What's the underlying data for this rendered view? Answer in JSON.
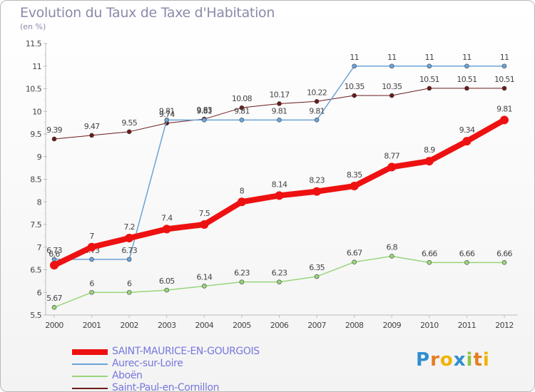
{
  "title": "Evolution du Taux de Taxe d'Habitation",
  "unit_label": "(en %)",
  "logo": {
    "letters": [
      "P",
      "r",
      "o",
      "x",
      "i",
      "t",
      "i"
    ],
    "colors": [
      "#2f8fd0",
      "#e57e22",
      "#f0b400",
      "#2f8fd0",
      "#8fc63d",
      "#e57e22",
      "#f0b400"
    ]
  },
  "chart_data": {
    "type": "line",
    "x": [
      2000,
      2001,
      2002,
      2003,
      2004,
      2005,
      2006,
      2007,
      2008,
      2009,
      2010,
      2011,
      2012
    ],
    "ylim": [
      5.5,
      11.5
    ],
    "yticks": [
      "5.5",
      "6",
      "6.5",
      "7",
      "7.5",
      "8",
      "8.5",
      "9",
      "9.5",
      "10",
      "10.5",
      "11",
      "11.5"
    ],
    "grid": false,
    "legend_position": "bottom-left",
    "series": [
      {
        "name": "Saint-Paul-en-Cornillon",
        "color": "#6b1a1a",
        "width": 1,
        "marker": 3,
        "values": [
          9.39,
          9.47,
          9.55,
          9.74,
          9.83,
          10.08,
          10.17,
          10.22,
          10.35,
          10.35,
          10.51,
          10.51,
          10.51
        ],
        "labels": [
          "9.39",
          "9.47",
          "9.55",
          "9.74",
          "9.83",
          "10.08",
          "10.17",
          "10.22",
          "10.35",
          "10.35",
          "10.51",
          "10.51",
          "10.51"
        ]
      },
      {
        "name": "Aboën",
        "color": "#99d57a",
        "width": 1.5,
        "marker": 3,
        "values": [
          5.67,
          6,
          6,
          6.05,
          6.14,
          6.23,
          6.23,
          6.35,
          6.67,
          6.8,
          6.66,
          6.66,
          6.66
        ],
        "labels": [
          "5.67",
          "6",
          "6",
          "6.05",
          "6.14",
          "6.23",
          "6.23",
          "6.35",
          "6.67",
          "6.8",
          "6.66",
          "6.66",
          "6.66"
        ]
      },
      {
        "name": "Aurec-sur-Loire",
        "color": "#6aa3d8",
        "width": 1.5,
        "marker": 3,
        "values": [
          6.73,
          6.73,
          6.73,
          9.81,
          9.81,
          9.81,
          9.81,
          9.81,
          11,
          11,
          11,
          11,
          11
        ],
        "labels": [
          "6.73",
          "6.73",
          "6.73",
          "9.81",
          "9.81",
          "9.81",
          "9.81",
          "9.81",
          "11",
          "11",
          "11",
          "11",
          "11"
        ]
      },
      {
        "name": "SAINT-MAURICE-EN-GOURGOIS",
        "color": "#ee1111",
        "width": 8,
        "marker": 6,
        "values": [
          6.6,
          7,
          7.2,
          7.4,
          7.5,
          8,
          8.14,
          8.23,
          8.35,
          8.77,
          8.9,
          9.34,
          9.81
        ],
        "labels": [
          "6.6",
          "7",
          "7.2",
          "7.4",
          "7.5",
          "8",
          "8.14",
          "8.23",
          "8.35",
          "8.77",
          "8.9",
          "9.34",
          "9.81"
        ]
      }
    ]
  },
  "legend": [
    {
      "label": "SAINT-MAURICE-EN-GOURGOIS",
      "color": "#ee1111",
      "thick": 8
    },
    {
      "label": "Aurec-sur-Loire",
      "color": "#6aa3d8",
      "thick": 2
    },
    {
      "label": "Aboën",
      "color": "#99d57a",
      "thick": 2
    },
    {
      "label": "Saint-Paul-en-Cornillon",
      "color": "#6b1a1a",
      "thick": 2
    }
  ]
}
